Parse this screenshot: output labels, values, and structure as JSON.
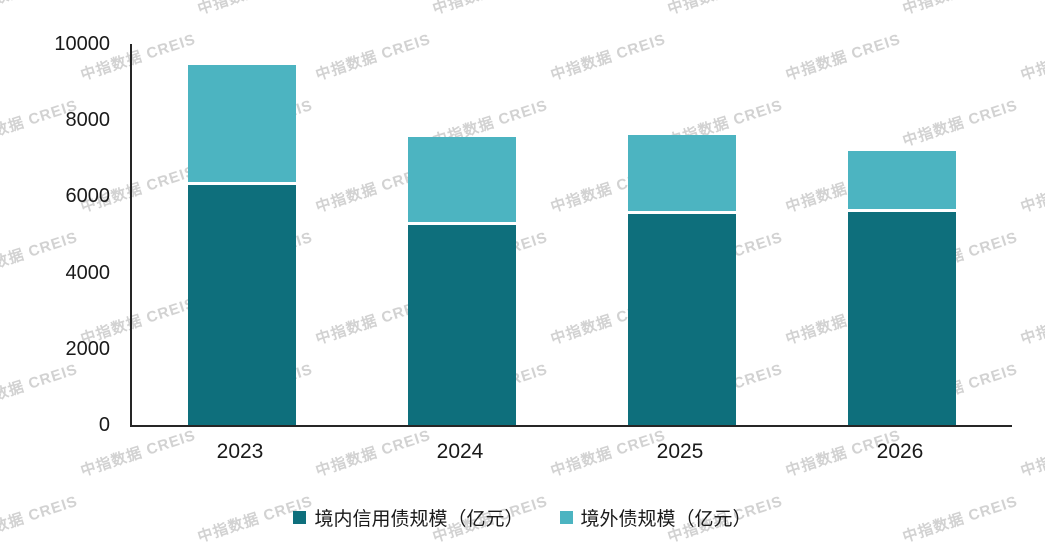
{
  "watermark": {
    "text": "中指数据 CREIS"
  },
  "chart_data": {
    "type": "bar",
    "stacked": true,
    "title": "",
    "categories": [
      "2023",
      "2024",
      "2025",
      "2026"
    ],
    "series": [
      {
        "name": "境内信用债规模（亿元）",
        "color": "#0e6f7c",
        "values": [
          6300,
          5250,
          5550,
          5600
        ]
      },
      {
        "name": "境外债规模（亿元）",
        "color": "#4cb4c1",
        "values": [
          3150,
          2300,
          2050,
          1600
        ]
      }
    ],
    "ylim": [
      0,
      10000
    ],
    "yticks": [
      0,
      2000,
      4000,
      6000,
      8000,
      10000
    ],
    "xlabel": "",
    "ylabel": "",
    "grid": false,
    "legend_position": "bottom"
  }
}
